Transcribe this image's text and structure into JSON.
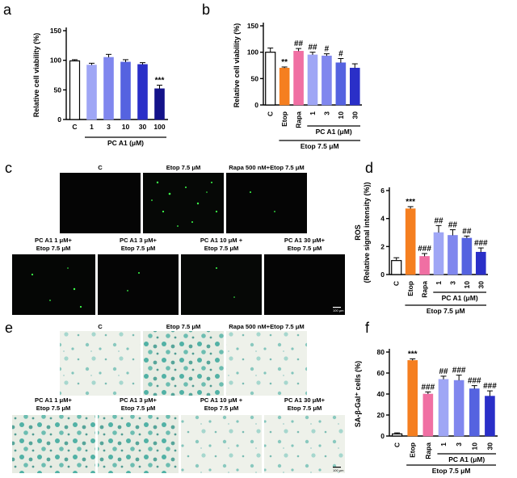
{
  "panels": {
    "a": "a",
    "b": "b",
    "c": "c",
    "d": "d",
    "e": "e",
    "f": "f"
  },
  "colors": {
    "control": "#ffffff",
    "etop_b": "#f57f20",
    "etop_f": "#f57f20",
    "rapa": "#f06fa3",
    "pc1": "#9fa6f5",
    "pc3": "#8087ee",
    "pc10": "#5563e0",
    "pc30": "#2a2fc8",
    "pc100": "#14138a"
  },
  "chart_data": [
    {
      "id": "a",
      "type": "bar",
      "categories": [
        "C",
        "1",
        "3",
        "10",
        "30",
        "100"
      ],
      "values": [
        99,
        92,
        105,
        97,
        93,
        52
      ],
      "errors": [
        2,
        3,
        5,
        4,
        3,
        6
      ],
      "ylabel": "Relative cell viability (%)",
      "ylim": [
        0,
        150
      ],
      "yticks": [
        0,
        50,
        100,
        150
      ],
      "group_label": "PC A1 (μM)",
      "significance": {
        "5": "***"
      }
    },
    {
      "id": "b",
      "type": "bar",
      "categories": [
        "C",
        "Etop",
        "Rapa",
        "1",
        "3",
        "10",
        "30"
      ],
      "values": [
        100,
        70,
        102,
        95,
        93,
        80,
        70
      ],
      "errors": [
        8,
        2,
        5,
        5,
        4,
        8,
        8
      ],
      "ylabel": "Relative cell viability (%)",
      "ylim": [
        0,
        150
      ],
      "yticks": [
        0,
        50,
        100,
        150
      ],
      "group_label": "PC A1 (μM)",
      "group_label2": "Etop 7.5 μM",
      "significance": {
        "1": "**",
        "2": "##",
        "3": "##",
        "4": "#",
        "5": "#"
      }
    },
    {
      "id": "d",
      "type": "bar",
      "categories": [
        "C",
        "Etop",
        "Rapa",
        "1",
        "3",
        "10",
        "30"
      ],
      "values": [
        1.0,
        4.7,
        1.3,
        3.0,
        2.8,
        2.6,
        1.6
      ],
      "errors": [
        0.2,
        0.15,
        0.2,
        0.5,
        0.4,
        0.15,
        0.3
      ],
      "ylabel": "ROS",
      "ylabel2": "(Relative signal intensity (%))",
      "ylim": [
        0,
        6
      ],
      "yticks": [
        0,
        2,
        4,
        6
      ],
      "group_label": "PC A1 (μM)",
      "group_label2": "Etop 7.5 μM",
      "significance": {
        "1": "***",
        "2": "###",
        "3": "##",
        "4": "##",
        "5": "##",
        "6": "###"
      }
    },
    {
      "id": "f",
      "type": "bar",
      "categories": [
        "C",
        "Etop",
        "Rapa",
        "1",
        "3",
        "10",
        "30"
      ],
      "values": [
        2,
        72,
        40,
        54,
        53,
        45,
        38
      ],
      "errors": [
        1,
        1.5,
        2,
        3,
        5,
        3,
        5
      ],
      "ylabel": "SA-β-Gal⁺ cells (%)",
      "ylim": [
        0,
        80
      ],
      "yticks": [
        0,
        20,
        40,
        60,
        80
      ],
      "group_label": "PC A1 (μM)",
      "group_label2": "Etop 7.5 μM",
      "significance": {
        "1": "***",
        "2": "###",
        "3": "##",
        "4": "###",
        "5": "###",
        "6": "###"
      }
    }
  ],
  "micrographs_c": [
    {
      "top": "C"
    },
    {
      "top": "Etop 7.5 μM"
    },
    {
      "top": "Rapa 500 nM+Etop 7.5 μM"
    },
    {
      "top": "PC A1 1 μM+",
      "top2": "Etop 7.5 μM"
    },
    {
      "top": "PC A1 3 μM+",
      "top2": "Etop 7.5 μM"
    },
    {
      "top": "PC A1 10 μM +",
      "top2": "Etop 7.5 μM"
    },
    {
      "top": "PC A1 30 μM+",
      "top2": "Etop 7.5 μM"
    }
  ],
  "micrographs_e": [
    {
      "top": "C"
    },
    {
      "top": "Etop 7.5 μM"
    },
    {
      "top": "Rapa 500 nM+Etop 7.5 μM"
    },
    {
      "top": "PC A1 1 μM+",
      "top2": "Etop 7.5 μM"
    },
    {
      "top": "PC A1 3 μM+",
      "top2": "Etop 7.5 μM"
    },
    {
      "top": "PC A1 10 μM +",
      "top2": "Etop 7.5 μM"
    },
    {
      "top": "PC A1 30 μM+",
      "top2": "Etop 7.5 μM"
    }
  ],
  "scalebar_c": "100 μm",
  "scalebar_e": "100 μm"
}
